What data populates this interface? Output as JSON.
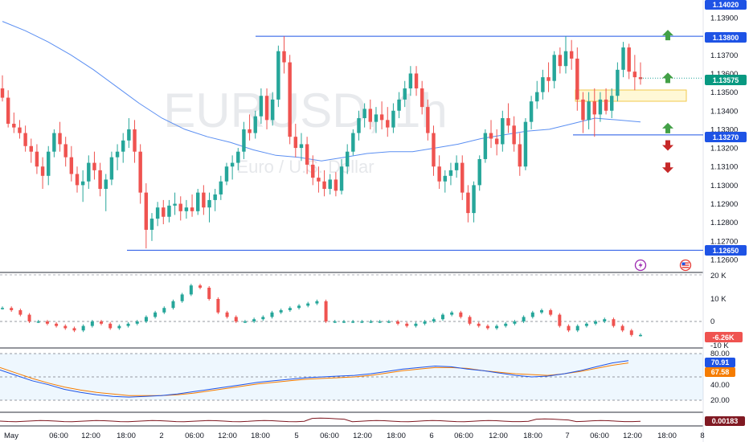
{
  "symbol": {
    "ticker_text": "EURUSD, 1h",
    "description": "Euro / U.S. Dollar"
  },
  "colors": {
    "up": "#26a69a",
    "down": "#ef5350",
    "line": "#1e53e5",
    "ma": "#5b8ff2",
    "orange": "#f57c00",
    "dark_red": "#801922"
  },
  "price_axis": {
    "ticks": [
      "1.13900",
      "1.13700",
      "1.13600",
      "1.13500",
      "1.13400",
      "1.13300",
      "1.13200",
      "1.13100",
      "1.13000",
      "1.12900",
      "1.12800",
      "1.12700",
      "1.12600"
    ],
    "top_label": "1.14020"
  },
  "price_tags": [
    {
      "label": "1.13800",
      "kind": "line"
    },
    {
      "label": "1.13575",
      "kind": "last"
    },
    {
      "label": "1.13270",
      "kind": "line"
    },
    {
      "label": "1.12650",
      "kind": "line"
    }
  ],
  "volume_axis": {
    "ticks": [
      "20 K",
      "10 K",
      "0",
      "-10 K"
    ],
    "current": "-6.26K"
  },
  "stoch_axis": {
    "ticks": [
      "80.00",
      "40.00",
      "20.00"
    ],
    "k_value": "70.91",
    "d_value": "67.58"
  },
  "bottom_indicator": {
    "value": "0.00183"
  },
  "time_axis": [
    "May",
    "06:00",
    "12:00",
    "18:00",
    "2",
    "06:00",
    "12:00",
    "18:00",
    "5",
    "06:00",
    "12:00",
    "18:00",
    "6",
    "06:00",
    "12:00",
    "18:00",
    "7",
    "06:00",
    "12:00",
    "18:00",
    "8"
  ],
  "chart_data": {
    "type": "candlestick",
    "ylim": [
      1.126,
      1.1402
    ],
    "levels": [
      1.138,
      1.1327,
      1.1265
    ],
    "last_price": 1.13575,
    "zone": [
      1.1349,
      1.1352
    ],
    "arrows": [
      {
        "dir": "up",
        "price": 1.138
      },
      {
        "dir": "up",
        "price": 1.1357
      },
      {
        "dir": "up",
        "price": 1.133
      },
      {
        "dir": "down",
        "price": 1.1322
      },
      {
        "dir": "down",
        "price": 1.131
      }
    ],
    "candles": [
      [
        1.1352,
        1.1359,
        1.1345,
        1.1347
      ],
      [
        1.1347,
        1.1351,
        1.1331,
        1.1333
      ],
      [
        1.1333,
        1.1339,
        1.1328,
        1.1331
      ],
      [
        1.1331,
        1.1335,
        1.1325,
        1.1328
      ],
      [
        1.1328,
        1.1332,
        1.1318,
        1.1321
      ],
      [
        1.1321,
        1.1325,
        1.1312,
        1.1318
      ],
      [
        1.1318,
        1.1322,
        1.1306,
        1.131
      ],
      [
        1.131,
        1.1315,
        1.1298,
        1.1305
      ],
      [
        1.1305,
        1.1321,
        1.13,
        1.1318
      ],
      [
        1.1318,
        1.133,
        1.1315,
        1.1328
      ],
      [
        1.1328,
        1.1334,
        1.1318,
        1.1322
      ],
      [
        1.1322,
        1.1326,
        1.131,
        1.1315
      ],
      [
        1.1315,
        1.1321,
        1.1302,
        1.1306
      ],
      [
        1.1306,
        1.131,
        1.1296,
        1.13
      ],
      [
        1.13,
        1.1308,
        1.1291,
        1.1302
      ],
      [
        1.1302,
        1.1316,
        1.1298,
        1.1312
      ],
      [
        1.1312,
        1.1318,
        1.1303,
        1.1308
      ],
      [
        1.1308,
        1.1312,
        1.1294,
        1.1298
      ],
      [
        1.1298,
        1.1306,
        1.1286,
        1.1303
      ],
      [
        1.1303,
        1.1318,
        1.13,
        1.1315
      ],
      [
        1.1315,
        1.1322,
        1.1308,
        1.1318
      ],
      [
        1.1318,
        1.1328,
        1.1312,
        1.1324
      ],
      [
        1.1324,
        1.1336,
        1.132,
        1.133
      ],
      [
        1.133,
        1.1335,
        1.1312,
        1.1318
      ],
      [
        1.1318,
        1.1322,
        1.129,
        1.1296
      ],
      [
        1.1296,
        1.1301,
        1.1266,
        1.1276
      ],
      [
        1.1276,
        1.1285,
        1.127,
        1.1282
      ],
      [
        1.1282,
        1.1291,
        1.1278,
        1.1288
      ],
      [
        1.1288,
        1.1292,
        1.1279,
        1.1283
      ],
      [
        1.1283,
        1.1292,
        1.128,
        1.1289
      ],
      [
        1.1289,
        1.1296,
        1.1284,
        1.129
      ],
      [
        1.129,
        1.1294,
        1.1281,
        1.1286
      ],
      [
        1.1286,
        1.1292,
        1.1282,
        1.1288
      ],
      [
        1.1288,
        1.1295,
        1.1283,
        1.1286
      ],
      [
        1.1286,
        1.1298,
        1.1284,
        1.1296
      ],
      [
        1.1296,
        1.13,
        1.1284,
        1.1288
      ],
      [
        1.1288,
        1.1296,
        1.128,
        1.1292
      ],
      [
        1.1292,
        1.1298,
        1.1286,
        1.1295
      ],
      [
        1.1295,
        1.1305,
        1.1292,
        1.1302
      ],
      [
        1.1302,
        1.1312,
        1.13,
        1.131
      ],
      [
        1.131,
        1.1316,
        1.1303,
        1.1312
      ],
      [
        1.1312,
        1.132,
        1.1308,
        1.1318
      ],
      [
        1.1318,
        1.1334,
        1.1314,
        1.133
      ],
      [
        1.133,
        1.1338,
        1.1324,
        1.1328
      ],
      [
        1.1328,
        1.134,
        1.1325,
        1.1337
      ],
      [
        1.1337,
        1.1352,
        1.1333,
        1.1348
      ],
      [
        1.1348,
        1.1352,
        1.133,
        1.1335
      ],
      [
        1.1335,
        1.135,
        1.1332,
        1.1346
      ],
      [
        1.1346,
        1.1375,
        1.1342,
        1.1372
      ],
      [
        1.1372,
        1.138,
        1.136,
        1.1366
      ],
      [
        1.1366,
        1.137,
        1.1322,
        1.1326
      ],
      [
        1.1326,
        1.1333,
        1.1315,
        1.132
      ],
      [
        1.132,
        1.1328,
        1.1313,
        1.1322
      ],
      [
        1.1322,
        1.1326,
        1.1306,
        1.1311
      ],
      [
        1.1311,
        1.1316,
        1.13,
        1.1304
      ],
      [
        1.1304,
        1.131,
        1.1296,
        1.1302
      ],
      [
        1.1302,
        1.1308,
        1.1294,
        1.1298
      ],
      [
        1.1298,
        1.1306,
        1.1295,
        1.1303
      ],
      [
        1.1303,
        1.1307,
        1.1294,
        1.1297
      ],
      [
        1.1297,
        1.1314,
        1.1295,
        1.131
      ],
      [
        1.131,
        1.1322,
        1.1306,
        1.1318
      ],
      [
        1.1318,
        1.133,
        1.1316,
        1.1328
      ],
      [
        1.1328,
        1.134,
        1.1324,
        1.1336
      ],
      [
        1.1336,
        1.1344,
        1.1331,
        1.1341
      ],
      [
        1.1341,
        1.1346,
        1.133,
        1.1334
      ],
      [
        1.1334,
        1.1342,
        1.1328,
        1.1338
      ],
      [
        1.1338,
        1.1345,
        1.133,
        1.1335
      ],
      [
        1.1335,
        1.1342,
        1.1326,
        1.1331
      ],
      [
        1.1331,
        1.1344,
        1.1328,
        1.134
      ],
      [
        1.134,
        1.135,
        1.1336,
        1.1346
      ],
      [
        1.1346,
        1.1356,
        1.1342,
        1.1352
      ],
      [
        1.1352,
        1.1364,
        1.1348,
        1.136
      ],
      [
        1.136,
        1.1364,
        1.1348,
        1.1352
      ],
      [
        1.1352,
        1.1356,
        1.1338,
        1.1342
      ],
      [
        1.1342,
        1.1346,
        1.1324,
        1.1328
      ],
      [
        1.1328,
        1.1332,
        1.1305,
        1.131
      ],
      [
        1.131,
        1.1316,
        1.1298,
        1.1302
      ],
      [
        1.1302,
        1.1308,
        1.1296,
        1.1305
      ],
      [
        1.1305,
        1.1312,
        1.13,
        1.1308
      ],
      [
        1.1308,
        1.1316,
        1.1304,
        1.1312
      ],
      [
        1.1312,
        1.1316,
        1.1292,
        1.1296
      ],
      [
        1.1296,
        1.13,
        1.128,
        1.1285
      ],
      [
        1.1285,
        1.1302,
        1.128,
        1.13
      ],
      [
        1.13,
        1.1316,
        1.1297,
        1.1314
      ],
      [
        1.1314,
        1.133,
        1.1312,
        1.1328
      ],
      [
        1.1328,
        1.1335,
        1.132,
        1.1325
      ],
      [
        1.1325,
        1.133,
        1.1316,
        1.1322
      ],
      [
        1.1322,
        1.134,
        1.1318,
        1.1336
      ],
      [
        1.1336,
        1.1344,
        1.1328,
        1.1332
      ],
      [
        1.1332,
        1.1337,
        1.1318,
        1.1322
      ],
      [
        1.1322,
        1.1328,
        1.1305,
        1.131
      ],
      [
        1.131,
        1.1336,
        1.1308,
        1.1334
      ],
      [
        1.1334,
        1.1348,
        1.133,
        1.1345
      ],
      [
        1.1345,
        1.1356,
        1.1341,
        1.135
      ],
      [
        1.135,
        1.1362,
        1.1346,
        1.1358
      ],
      [
        1.1358,
        1.1366,
        1.135,
        1.1356
      ],
      [
        1.1356,
        1.1372,
        1.1352,
        1.137
      ],
      [
        1.137,
        1.1374,
        1.136,
        1.1364
      ],
      [
        1.1364,
        1.138,
        1.136,
        1.1372
      ],
      [
        1.1372,
        1.1378,
        1.1362,
        1.1368
      ],
      [
        1.1368,
        1.1374,
        1.134,
        1.1346
      ],
      [
        1.1346,
        1.135,
        1.1328,
        1.1335
      ],
      [
        1.1335,
        1.135,
        1.133,
        1.1345
      ],
      [
        1.1345,
        1.1352,
        1.1326,
        1.1338
      ],
      [
        1.1338,
        1.135,
        1.1334,
        1.1346
      ],
      [
        1.1346,
        1.1352,
        1.1338,
        1.134
      ],
      [
        1.134,
        1.1352,
        1.1336,
        1.1348
      ],
      [
        1.1348,
        1.1366,
        1.1345,
        1.1362
      ],
      [
        1.1362,
        1.1377,
        1.1358,
        1.1374
      ],
      [
        1.1374,
        1.1376,
        1.1357,
        1.1361
      ],
      [
        1.1361,
        1.137,
        1.1351,
        1.1358
      ],
      [
        1.1358,
        1.1366,
        1.1354,
        1.1357
      ]
    ],
    "ma": [
      1.1388,
      1.1383,
      1.1377,
      1.137,
      1.1362,
      1.1353,
      1.1344,
      1.1336,
      1.133,
      1.1326,
      1.1323,
      1.1319,
      1.1316,
      1.1315,
      1.1313,
      1.1315,
      1.1317,
      1.1318,
      1.1318,
      1.132,
      1.1322,
      1.1325,
      1.1327,
      1.1329,
      1.133,
      1.1333,
      1.1336,
      1.1335,
      1.1334
    ],
    "volume": [
      6,
      5,
      3,
      0,
      0,
      -1,
      -2,
      -3,
      -4,
      -2,
      0,
      -1,
      -3,
      -2,
      -1,
      0,
      2,
      4,
      6,
      9,
      12,
      16,
      15,
      10,
      4,
      2,
      0,
      0,
      1,
      2,
      4,
      5,
      6,
      7,
      8,
      9,
      0,
      0,
      0,
      0,
      0,
      0,
      0,
      0,
      -1,
      -2,
      -1,
      0,
      1,
      3,
      4,
      2,
      -1,
      -2,
      -3,
      -2,
      -1,
      0,
      2,
      4,
      5,
      3,
      -2,
      -4,
      -2,
      -1,
      0,
      1,
      -2,
      -4,
      -6,
      -6
    ],
    "stoch_k": [
      59,
      52,
      45,
      40,
      34,
      30,
      27,
      25,
      24,
      25,
      26,
      28,
      31,
      34,
      37,
      40,
      43,
      45,
      47,
      49,
      50,
      51,
      52,
      54,
      57,
      60,
      62,
      64,
      63,
      60,
      58,
      55,
      52,
      50,
      51,
      54,
      58,
      63,
      68,
      71
    ],
    "stoch_d": [
      62,
      55,
      48,
      42,
      37,
      33,
      30,
      28,
      26,
      26,
      26,
      27,
      29,
      32,
      35,
      38,
      41,
      43,
      45,
      47,
      48,
      49,
      50,
      52,
      55,
      58,
      60,
      62,
      62,
      61,
      58,
      56,
      54,
      53,
      52,
      54,
      57,
      61,
      65,
      68
    ]
  }
}
